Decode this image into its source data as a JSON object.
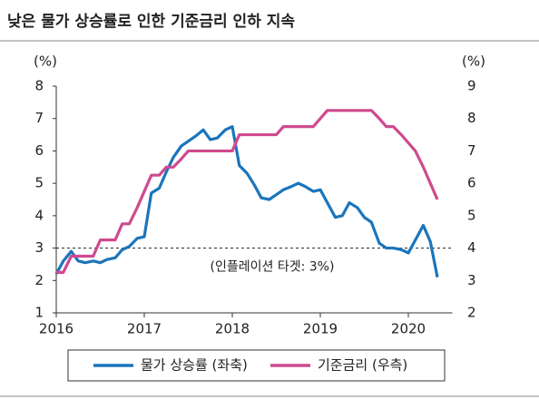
{
  "chart_data": {
    "type": "line",
    "title": "낮은 물가 상승률로 인한 기준금리 인하 지속",
    "y_label": "(%)",
    "y2_label": "(%)",
    "x": [
      2016.0,
      2016.08,
      2016.17,
      2016.25,
      2016.33,
      2016.42,
      2016.5,
      2016.58,
      2016.67,
      2016.75,
      2016.83,
      2016.92,
      2017.0,
      2017.08,
      2017.17,
      2017.25,
      2017.33,
      2017.42,
      2017.5,
      2017.58,
      2017.67,
      2017.75,
      2017.83,
      2017.92,
      2018.0,
      2018.08,
      2018.17,
      2018.25,
      2018.33,
      2018.42,
      2018.5,
      2018.58,
      2018.67,
      2018.75,
      2018.83,
      2018.92,
      2019.0,
      2019.08,
      2019.17,
      2019.25,
      2019.33,
      2019.42,
      2019.5,
      2019.58,
      2019.67,
      2019.75,
      2019.83,
      2019.92,
      2020.0,
      2020.08,
      2020.17,
      2020.25,
      2020.33
    ],
    "series": [
      {
        "name": "물가 상승률 (좌축)",
        "color": "#1b75bb",
        "axis": "y",
        "values": [
          2.2,
          2.6,
          2.9,
          2.6,
          2.55,
          2.6,
          2.55,
          2.65,
          2.7,
          2.95,
          3.05,
          3.3,
          3.35,
          4.7,
          4.85,
          5.35,
          5.8,
          6.15,
          6.3,
          6.45,
          6.65,
          6.35,
          6.4,
          6.65,
          6.75,
          5.55,
          5.3,
          4.95,
          4.55,
          4.5,
          4.65,
          4.8,
          4.9,
          5.0,
          4.9,
          4.75,
          4.8,
          4.4,
          3.95,
          4.0,
          4.4,
          4.25,
          3.95,
          3.8,
          3.15,
          3.0,
          3.0,
          2.95,
          2.85,
          3.25,
          3.7,
          3.2,
          2.1
        ]
      },
      {
        "name": "기준금리 (우측)",
        "color": "#cf4a8e",
        "axis": "y2",
        "values": [
          3.25,
          3.25,
          3.75,
          3.75,
          3.75,
          3.75,
          4.25,
          4.25,
          4.25,
          4.75,
          4.75,
          5.25,
          5.75,
          6.25,
          6.25,
          6.5,
          6.5,
          6.75,
          7,
          7,
          7,
          7,
          7,
          7,
          7,
          7.5,
          7.5,
          7.5,
          7.5,
          7.5,
          7.5,
          7.75,
          7.75,
          7.75,
          7.75,
          7.75,
          8.0,
          8.25,
          8.25,
          8.25,
          8.25,
          8.25,
          8.25,
          8.25,
          8.0,
          7.75,
          7.75,
          7.5,
          7.25,
          7.0,
          6.5,
          6.0,
          5.5
        ]
      }
    ],
    "xlim": [
      2016,
      2020.5
    ],
    "xticks": [
      2016,
      2017,
      2018,
      2019,
      2020
    ],
    "ylim": [
      1,
      8
    ],
    "yticks": [
      1,
      2,
      3,
      4,
      5,
      6,
      7,
      8
    ],
    "y2lim": [
      2,
      9
    ],
    "y2ticks": [
      2,
      3,
      4,
      5,
      6,
      7,
      8,
      9
    ],
    "reference_line": {
      "value": 3,
      "label": "(인플레이션 타겟: 3%)"
    }
  }
}
